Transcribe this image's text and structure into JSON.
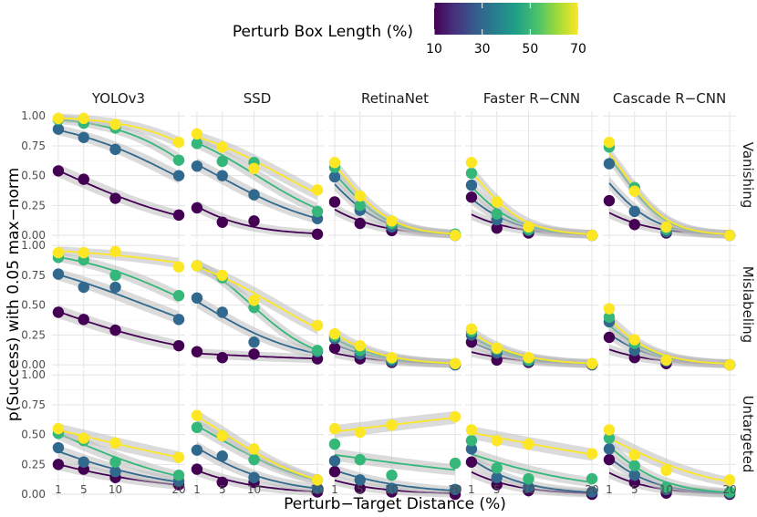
{
  "chart_data": {
    "type": "scatter",
    "layout": "facet_grid",
    "xlabel": "Perturb−Target Distance (%)",
    "ylabel": "p(Success) with 0.05 max−norm",
    "x_ticks": [
      1,
      5,
      10,
      20
    ],
    "y_ticks": [
      "0.00",
      "0.25",
      "0.50",
      "0.75",
      "1.00"
    ],
    "xlim": [
      0,
      21
    ],
    "ylim": [
      -0.03,
      1.04
    ],
    "grid": true,
    "legend": {
      "title": "Perturb Box Length (%)",
      "placement": "top",
      "ticks": [
        "10",
        "30",
        "50",
        "70"
      ],
      "range": [
        10,
        70
      ]
    },
    "colors": {
      "10": "#440154",
      "30": "#31688e",
      "50": "#35b779",
      "70": "#fde725",
      "gradient": [
        "#440154",
        "#46327e",
        "#365c8d",
        "#277f8e",
        "#1fa187",
        "#4ac16d",
        "#a0da39",
        "#fde725"
      ]
    },
    "columns": [
      "YOLOv3",
      "SSD",
      "RetinaNet",
      "Faster R−CNN",
      "Cascade R−CNN"
    ],
    "rows": [
      "Vanishing",
      "Mislabeling",
      "Untargeted"
    ],
    "series_keys": [
      "10",
      "30",
      "50",
      "70"
    ],
    "points_x": [
      1,
      5,
      10,
      20
    ],
    "panels": [
      [
        {
          "10": [
            0.54,
            0.47,
            0.31,
            0.17
          ],
          "30": [
            0.89,
            0.82,
            0.72,
            0.5
          ],
          "50": [
            0.97,
            0.94,
            0.9,
            0.63
          ],
          "70": [
            0.98,
            0.98,
            0.93,
            0.78
          ]
        },
        {
          "10": [
            0.23,
            0.11,
            0.12,
            0.01
          ],
          "30": [
            0.58,
            0.5,
            0.34,
            0.14
          ],
          "50": [
            0.77,
            0.62,
            0.61,
            0.2
          ],
          "70": [
            0.85,
            0.74,
            0.56,
            0.38
          ]
        },
        {
          "10": [
            0.28,
            0.1,
            0.04,
            0.0
          ],
          "30": [
            0.49,
            0.21,
            0.07,
            0.0
          ],
          "50": [
            0.57,
            0.25,
            0.1,
            0.01
          ],
          "70": [
            0.61,
            0.33,
            0.12,
            0.0
          ]
        },
        {
          "10": [
            0.32,
            0.06,
            0.02,
            0.0
          ],
          "30": [
            0.42,
            0.13,
            0.04,
            0.0
          ],
          "50": [
            0.52,
            0.18,
            0.05,
            0.0
          ],
          "70": [
            0.61,
            0.28,
            0.07,
            0.0
          ]
        },
        {
          "10": [
            0.29,
            0.09,
            0.02,
            0.0
          ],
          "30": [
            0.6,
            0.2,
            0.03,
            0.0
          ],
          "50": [
            0.74,
            0.4,
            0.05,
            0.0
          ],
          "70": [
            0.78,
            0.37,
            0.07,
            0.0
          ]
        }
      ],
      [
        {
          "10": [
            0.44,
            0.38,
            0.29,
            0.16
          ],
          "30": [
            0.76,
            0.65,
            0.65,
            0.38
          ],
          "50": [
            0.9,
            0.88,
            0.75,
            0.58
          ],
          "70": [
            0.94,
            0.94,
            0.95,
            0.82
          ]
        },
        {
          "10": [
            0.11,
            0.06,
            0.09,
            0.05
          ],
          "30": [
            0.56,
            0.44,
            0.19,
            0.11
          ],
          "50": [
            0.83,
            0.73,
            0.48,
            0.12
          ],
          "70": [
            0.83,
            0.75,
            0.54,
            0.33
          ]
        },
        {
          "10": [
            0.14,
            0.05,
            0.02,
            0.0
          ],
          "30": [
            0.22,
            0.09,
            0.03,
            0.0
          ],
          "50": [
            0.24,
            0.12,
            0.05,
            0.01
          ],
          "70": [
            0.26,
            0.16,
            0.06,
            0.01
          ]
        },
        {
          "10": [
            0.19,
            0.04,
            0.02,
            0.0
          ],
          "30": [
            0.25,
            0.1,
            0.03,
            0.0
          ],
          "50": [
            0.28,
            0.13,
            0.04,
            0.01
          ],
          "70": [
            0.3,
            0.14,
            0.06,
            0.01
          ]
        },
        {
          "10": [
            0.23,
            0.06,
            0.01,
            0.0
          ],
          "30": [
            0.36,
            0.12,
            0.03,
            0.0
          ],
          "50": [
            0.4,
            0.18,
            0.04,
            0.0
          ],
          "70": [
            0.47,
            0.21,
            0.04,
            0.0
          ]
        }
      ],
      [
        {
          "10": [
            0.25,
            0.21,
            0.14,
            0.08
          ],
          "30": [
            0.39,
            0.27,
            0.19,
            0.11
          ],
          "50": [
            0.51,
            0.45,
            0.27,
            0.16
          ],
          "70": [
            0.55,
            0.47,
            0.43,
            0.31
          ]
        },
        {
          "10": [
            0.21,
            0.1,
            0.1,
            0.02
          ],
          "30": [
            0.37,
            0.32,
            0.14,
            0.05
          ],
          "50": [
            0.56,
            0.49,
            0.29,
            0.12
          ],
          "70": [
            0.66,
            0.49,
            0.38,
            0.12
          ]
        },
        {
          "10": [
            0.19,
            0.05,
            0.02,
            0.0
          ],
          "30": [
            0.28,
            0.12,
            0.05,
            0.04
          ],
          "50": [
            0.42,
            0.29,
            0.16,
            0.26
          ],
          "70": [
            0.55,
            0.52,
            0.58,
            0.65
          ]
        },
        {
          "10": [
            0.27,
            0.08,
            0.03,
            0.0
          ],
          "30": [
            0.38,
            0.14,
            0.06,
            0.02
          ],
          "50": [
            0.45,
            0.22,
            0.13,
            0.13
          ],
          "70": [
            0.54,
            0.45,
            0.42,
            0.34
          ]
        },
        {
          "10": [
            0.29,
            0.1,
            0.01,
            0.0
          ],
          "30": [
            0.38,
            0.16,
            0.04,
            0.01
          ],
          "50": [
            0.47,
            0.24,
            0.06,
            0.02
          ],
          "70": [
            0.54,
            0.33,
            0.2,
            0.12
          ]
        }
      ]
    ]
  }
}
